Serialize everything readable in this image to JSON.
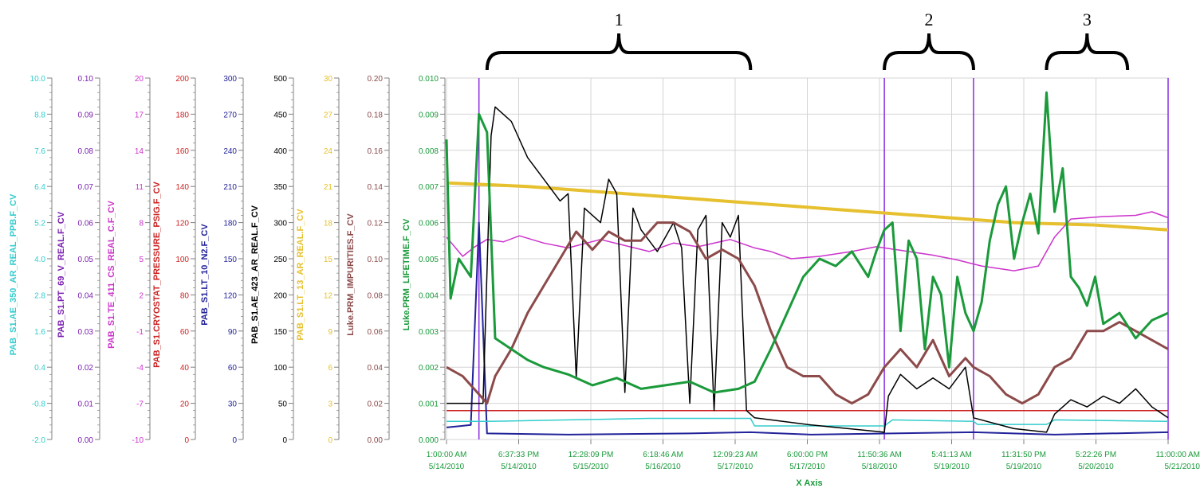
{
  "chart_data": {
    "type": "line",
    "xlabel": "X Axis",
    "x_ticks": [
      {
        "time": "1:00:00 AM",
        "date": "5/14/2010"
      },
      {
        "time": "6:37:33 PM",
        "date": "5/14/2010"
      },
      {
        "time": "12:28:09 PM",
        "date": "5/15/2010"
      },
      {
        "time": "6:18:46 AM",
        "date": "5/16/2010"
      },
      {
        "time": "12:09:23 AM",
        "date": "5/17/2010"
      },
      {
        "time": "6:00:00 PM",
        "date": "5/17/2010"
      },
      {
        "time": "11:50:36 AM",
        "date": "5/18/2010"
      },
      {
        "time": "5:41:13 AM",
        "date": "5/19/2010"
      },
      {
        "time": "11:31:50 PM",
        "date": "5/19/2010"
      },
      {
        "time": "5:22:26 PM",
        "date": "5/20/2010"
      },
      {
        "time": "11:00:00 AM",
        "date": "5/21/2010"
      }
    ],
    "xlim_hours": [
      0,
      178
    ],
    "y_axes": [
      {
        "label": "PAB_S1.AE_350_AR_REAL_PPB.F_CV",
        "color": "#33cccc",
        "ticks": [
          "10.0",
          "8.8",
          "7.6",
          "6.4",
          "5.2",
          "4.0",
          "2.8",
          "1.6",
          "0.4",
          "-0.8",
          "-2.0"
        ]
      },
      {
        "label": "PAB_S1.PT_69_V_REAL.F_CV",
        "color": "#7a1fb0",
        "ticks": [
          "0.10",
          "0.09",
          "0.08",
          "0.07",
          "0.06",
          "0.05",
          "0.04",
          "0.03",
          "0.02",
          "0.01",
          "0.00"
        ]
      },
      {
        "label": "PAB_S1.TE_411_CS_REAL_C.F_CV",
        "color": "#cc33cc",
        "ticks": [
          "20",
          "17",
          "14",
          "11",
          "8",
          "5",
          "2",
          "-1",
          "-4",
          "-7",
          "-10"
        ]
      },
      {
        "label": "PAB_S1.CRYOSTAT_PRESSURE_PSIG.F_CV",
        "color": "#cc2222",
        "ticks": [
          "200",
          "180",
          "160",
          "140",
          "120",
          "100",
          "80",
          "60",
          "40",
          "20",
          "0"
        ]
      },
      {
        "label": "PAB_S1.LT_10_N2.F_CV",
        "color": "#22229a",
        "ticks": [
          "300",
          "270",
          "240",
          "210",
          "180",
          "150",
          "120",
          "90",
          "60",
          "30",
          "0"
        ]
      },
      {
        "label": "PAB_S1.AE_423_AR_REAL.F_CV",
        "color": "#000000",
        "ticks": [
          "500",
          "450",
          "400",
          "350",
          "300",
          "250",
          "200",
          "150",
          "100",
          "50",
          "0"
        ]
      },
      {
        "label": "PAB_S1.LT_13_AR_REAL.F_CV",
        "color": "#e6c02e",
        "ticks": [
          "30",
          "27",
          "24",
          "21",
          "18",
          "15",
          "12",
          "9",
          "6",
          "3",
          "0"
        ]
      },
      {
        "label": "Luke.PRM_IMPURITIES.F_CV",
        "color": "#8c4a4a",
        "ticks": [
          "0.20",
          "0.18",
          "0.16",
          "0.14",
          "0.12",
          "0.10",
          "0.08",
          "0.06",
          "0.04",
          "0.02",
          "0.00"
        ]
      },
      {
        "label": "Luke.PRM_LIFETIME.F_CV",
        "color": "#1a9a3a",
        "ticks": [
          "0.010",
          "0.009",
          "0.008",
          "0.007",
          "0.006",
          "0.005",
          "0.004",
          "0.003",
          "0.002",
          "0.001",
          "0.000"
        ]
      }
    ],
    "annotations": [
      {
        "label": "1",
        "from_hours": 10,
        "to_hours": 75
      },
      {
        "label": "2",
        "from_hours": 108,
        "to_hours": 130
      },
      {
        "label": "3",
        "from_hours": 148,
        "to_hours": 168
      }
    ],
    "series": [
      {
        "color": "#e6c02e",
        "axis": 6,
        "width": 4,
        "points": [
          [
            0,
            21.3
          ],
          [
            20,
            21.0
          ],
          [
            40,
            20.5
          ],
          [
            60,
            20.0
          ],
          [
            80,
            19.5
          ],
          [
            100,
            19.0
          ],
          [
            120,
            18.5
          ],
          [
            140,
            18.0
          ],
          [
            160,
            17.8
          ],
          [
            178,
            17.4
          ]
        ]
      },
      {
        "color": "#cc33cc",
        "axis": 2,
        "width": 1.5,
        "points": [
          [
            0,
            6.8
          ],
          [
            4,
            5.2
          ],
          [
            7,
            6.0
          ],
          [
            10,
            6.6
          ],
          [
            14,
            6.4
          ],
          [
            18,
            6.9
          ],
          [
            24,
            6.3
          ],
          [
            30,
            5.9
          ],
          [
            38,
            6.6
          ],
          [
            44,
            6.1
          ],
          [
            50,
            5.6
          ],
          [
            56,
            6.3
          ],
          [
            62,
            6.0
          ],
          [
            70,
            6.6
          ],
          [
            76,
            5.9
          ],
          [
            80,
            5.6
          ],
          [
            85,
            5.0
          ],
          [
            92,
            5.2
          ],
          [
            100,
            5.6
          ],
          [
            106,
            6.0
          ],
          [
            112,
            5.7
          ],
          [
            120,
            5.3
          ],
          [
            126,
            4.9
          ],
          [
            132,
            4.4
          ],
          [
            140,
            4.0
          ],
          [
            146,
            4.4
          ],
          [
            150,
            6.8
          ],
          [
            154,
            8.3
          ],
          [
            162,
            8.5
          ],
          [
            170,
            8.6
          ],
          [
            174,
            8.9
          ],
          [
            178,
            8.4
          ]
        ]
      },
      {
        "color": "#cc2222",
        "axis": 3,
        "width": 1.5,
        "points": [
          [
            0,
            16
          ],
          [
            178,
            16
          ]
        ]
      },
      {
        "color": "#22229a",
        "axis": 4,
        "width": 2,
        "points": [
          [
            0,
            10
          ],
          [
            3,
            11
          ],
          [
            6,
            12
          ],
          [
            8,
            180
          ],
          [
            10,
            5
          ],
          [
            30,
            4
          ],
          [
            60,
            5
          ],
          [
            75,
            6
          ],
          [
            90,
            4
          ],
          [
            110,
            5
          ],
          [
            130,
            6
          ],
          [
            150,
            4
          ],
          [
            178,
            6
          ]
        ]
      },
      {
        "color": "#33cccc",
        "axis": 0,
        "width": 1.5,
        "points": [
          [
            0,
            -1.4
          ],
          [
            10,
            -1.4
          ],
          [
            30,
            -1.35
          ],
          [
            50,
            -1.3
          ],
          [
            75,
            -1.3
          ],
          [
            76,
            -1.55
          ],
          [
            108,
            -1.55
          ],
          [
            110,
            -1.35
          ],
          [
            130,
            -1.4
          ],
          [
            131,
            -1.5
          ],
          [
            148,
            -1.5
          ],
          [
            150,
            -1.35
          ],
          [
            178,
            -1.4
          ]
        ]
      },
      {
        "color": "#000000",
        "axis": 5,
        "width": 1.5,
        "points": [
          [
            0,
            50
          ],
          [
            9,
            50
          ],
          [
            11,
            420
          ],
          [
            12,
            460
          ],
          [
            16,
            440
          ],
          [
            20,
            390
          ],
          [
            24,
            360
          ],
          [
            28,
            330
          ],
          [
            30,
            340
          ],
          [
            32,
            85
          ],
          [
            34,
            320
          ],
          [
            38,
            300
          ],
          [
            40,
            360
          ],
          [
            42,
            340
          ],
          [
            44,
            65
          ],
          [
            46,
            320
          ],
          [
            48,
            290
          ],
          [
            52,
            260
          ],
          [
            54,
            280
          ],
          [
            56,
            300
          ],
          [
            58,
            265
          ],
          [
            60,
            50
          ],
          [
            62,
            290
          ],
          [
            64,
            310
          ],
          [
            66,
            40
          ],
          [
            68,
            300
          ],
          [
            70,
            280
          ],
          [
            72,
            310
          ],
          [
            74,
            40
          ],
          [
            76,
            30
          ],
          [
            90,
            20
          ],
          [
            108,
            10
          ],
          [
            109,
            60
          ],
          [
            112,
            90
          ],
          [
            116,
            70
          ],
          [
            120,
            85
          ],
          [
            124,
            70
          ],
          [
            128,
            100
          ],
          [
            130,
            30
          ],
          [
            140,
            15
          ],
          [
            148,
            10
          ],
          [
            150,
            35
          ],
          [
            154,
            55
          ],
          [
            158,
            45
          ],
          [
            162,
            60
          ],
          [
            166,
            50
          ],
          [
            170,
            70
          ],
          [
            174,
            45
          ],
          [
            178,
            30
          ]
        ]
      },
      {
        "color": "#8c4a4a",
        "axis": 7,
        "width": 3,
        "points": [
          [
            0,
            0.04
          ],
          [
            4,
            0.035
          ],
          [
            8,
            0.025
          ],
          [
            10,
            0.02
          ],
          [
            12,
            0.035
          ],
          [
            16,
            0.05
          ],
          [
            20,
            0.07
          ],
          [
            24,
            0.085
          ],
          [
            28,
            0.1
          ],
          [
            32,
            0.115
          ],
          [
            36,
            0.105
          ],
          [
            40,
            0.115
          ],
          [
            44,
            0.11
          ],
          [
            48,
            0.11
          ],
          [
            52,
            0.12
          ],
          [
            56,
            0.12
          ],
          [
            60,
            0.115
          ],
          [
            64,
            0.1
          ],
          [
            68,
            0.105
          ],
          [
            72,
            0.1
          ],
          [
            76,
            0.085
          ],
          [
            80,
            0.06
          ],
          [
            84,
            0.04
          ],
          [
            88,
            0.035
          ],
          [
            92,
            0.035
          ],
          [
            96,
            0.025
          ],
          [
            100,
            0.02
          ],
          [
            104,
            0.025
          ],
          [
            108,
            0.04
          ],
          [
            112,
            0.05
          ],
          [
            116,
            0.04
          ],
          [
            120,
            0.055
          ],
          [
            124,
            0.035
          ],
          [
            128,
            0.045
          ],
          [
            130,
            0.04
          ],
          [
            134,
            0.035
          ],
          [
            138,
            0.025
          ],
          [
            142,
            0.02
          ],
          [
            146,
            0.025
          ],
          [
            150,
            0.04
          ],
          [
            154,
            0.045
          ],
          [
            158,
            0.06
          ],
          [
            162,
            0.06
          ],
          [
            166,
            0.065
          ],
          [
            170,
            0.06
          ],
          [
            174,
            0.055
          ],
          [
            178,
            0.05
          ]
        ]
      },
      {
        "color": "#1a9a3a",
        "axis": 8,
        "width": 3,
        "points": [
          [
            0,
            0.0083
          ],
          [
            1,
            0.0039
          ],
          [
            3,
            0.005
          ],
          [
            6,
            0.0045
          ],
          [
            8,
            0.009
          ],
          [
            10,
            0.0085
          ],
          [
            12,
            0.0028
          ],
          [
            16,
            0.0025
          ],
          [
            20,
            0.0022
          ],
          [
            24,
            0.002
          ],
          [
            30,
            0.0018
          ],
          [
            36,
            0.0015
          ],
          [
            42,
            0.0017
          ],
          [
            48,
            0.0014
          ],
          [
            54,
            0.0015
          ],
          [
            60,
            0.0016
          ],
          [
            66,
            0.0013
          ],
          [
            72,
            0.0014
          ],
          [
            76,
            0.0016
          ],
          [
            80,
            0.0025
          ],
          [
            84,
            0.0035
          ],
          [
            88,
            0.0045
          ],
          [
            92,
            0.005
          ],
          [
            96,
            0.0048
          ],
          [
            100,
            0.0052
          ],
          [
            104,
            0.0045
          ],
          [
            106,
            0.0052
          ],
          [
            108,
            0.0058
          ],
          [
            110,
            0.006
          ],
          [
            112,
            0.003
          ],
          [
            114,
            0.0055
          ],
          [
            116,
            0.005
          ],
          [
            118,
            0.0025
          ],
          [
            120,
            0.0045
          ],
          [
            122,
            0.004
          ],
          [
            124,
            0.002
          ],
          [
            126,
            0.0045
          ],
          [
            128,
            0.0035
          ],
          [
            130,
            0.003
          ],
          [
            132,
            0.0038
          ],
          [
            134,
            0.0055
          ],
          [
            136,
            0.0065
          ],
          [
            138,
            0.007
          ],
          [
            140,
            0.005
          ],
          [
            142,
            0.006
          ],
          [
            144,
            0.0068
          ],
          [
            146,
            0.0057
          ],
          [
            148,
            0.0096
          ],
          [
            150,
            0.0063
          ],
          [
            152,
            0.0075
          ],
          [
            154,
            0.0045
          ],
          [
            156,
            0.0042
          ],
          [
            158,
            0.0037
          ],
          [
            160,
            0.0045
          ],
          [
            162,
            0.0032
          ],
          [
            166,
            0.0035
          ],
          [
            170,
            0.0028
          ],
          [
            174,
            0.0033
          ],
          [
            178,
            0.0035
          ]
        ]
      }
    ]
  }
}
